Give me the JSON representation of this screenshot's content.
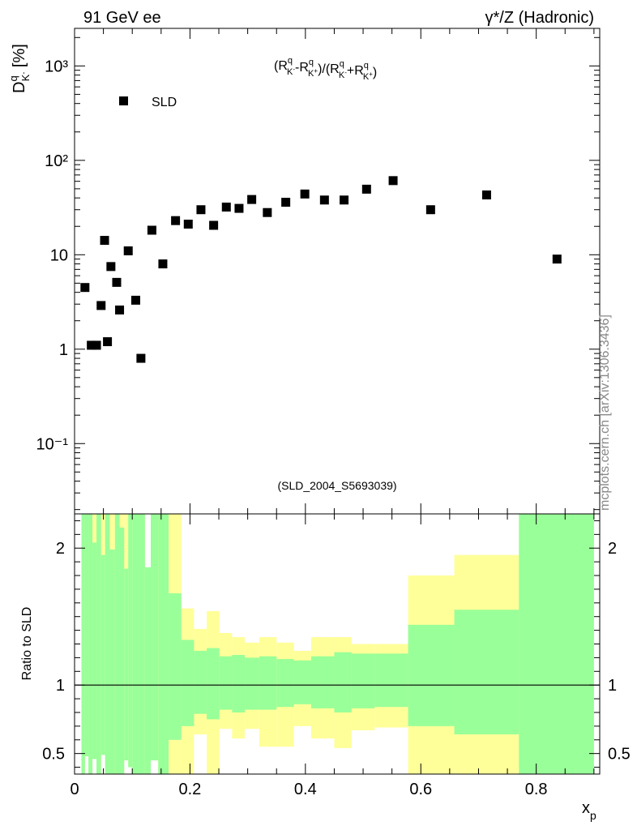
{
  "header": {
    "left": "91 GeV ee",
    "right": "γ*/Z (Hadronic)"
  },
  "watermark": "mcplots.cern.ch [arXiv:1306.3436]",
  "analysis_id": "(SLD_2004_S5693039)",
  "colors": {
    "inner_band": "#99ff99",
    "outer_band": "#ffff99",
    "marker": "#000000",
    "reference_line": "#000000"
  },
  "chart_data": [
    {
      "type": "scatter",
      "yscale": "log",
      "ylabel": "D_K^q [%]",
      "annotation": "(R_K-^q-R_K+^q)/(R_K-^q+R_K+^q)",
      "xlim": [
        0,
        0.91
      ],
      "ylim": [
        0.018,
        2500
      ],
      "y_ticks": [
        "10⁻¹",
        "1",
        "10",
        "10²",
        "10³"
      ],
      "legend": {
        "position": "top-left",
        "entries": [
          "SLD"
        ]
      },
      "series": [
        {
          "name": "SLD",
          "marker": "square",
          "x": [
            0.018,
            0.029,
            0.038,
            0.046,
            0.052,
            0.057,
            0.063,
            0.073,
            0.078,
            0.093,
            0.106,
            0.115,
            0.134,
            0.153,
            0.175,
            0.197,
            0.219,
            0.241,
            0.263,
            0.285,
            0.307,
            0.334,
            0.366,
            0.399,
            0.433,
            0.467,
            0.506,
            0.552,
            0.617,
            0.714,
            0.836
          ],
          "y": [
            4.5,
            1.1,
            1.1,
            2.9,
            14.2,
            1.2,
            7.5,
            5.1,
            2.6,
            11.0,
            3.3,
            0.8,
            18.2,
            8.0,
            23.0,
            21.1,
            30.0,
            20.5,
            32.0,
            31.0,
            38.5,
            28.0,
            36.0,
            44.0,
            38.0,
            38.0,
            49.5,
            61.0,
            30.0,
            43.0,
            9.0
          ]
        }
      ]
    },
    {
      "type": "area",
      "ylabel": "Ratio to SLD",
      "xlabel": "x_p",
      "xlim": [
        0,
        0.91
      ],
      "ylim": [
        0.35,
        2.25
      ],
      "x_ticks": [
        "0",
        "0.2",
        "0.4",
        "0.6",
        "0.8"
      ],
      "y_ticks": [
        "0.5",
        "1",
        "2"
      ],
      "reference_value": 1,
      "series": [
        {
          "name": "",
          "bins": [
            {
              "lo": 0.012,
              "hi": 0.018,
              "inner": [
                0.35,
                2.25
              ],
              "outer": [
                0.35,
                2.25
              ]
            },
            {
              "lo": 0.018,
              "hi": 0.024,
              "inner": [
                0.48,
                2.25
              ],
              "outer": [
                0.48,
                2.25
              ]
            },
            {
              "lo": 0.024,
              "hi": 0.031,
              "inner": [
                0.35,
                2.25
              ],
              "outer": [
                0.35,
                2.25
              ]
            },
            {
              "lo": 0.031,
              "hi": 0.038,
              "inner": [
                0.46,
                2.04
              ],
              "outer": [
                0.46,
                2.25
              ]
            },
            {
              "lo": 0.038,
              "hi": 0.046,
              "inner": [
                0.35,
                2.25
              ],
              "outer": [
                0.35,
                2.25
              ]
            },
            {
              "lo": 0.046,
              "hi": 0.053,
              "inner": [
                0.49,
                1.95
              ],
              "outer": [
                0.49,
                2.25
              ]
            },
            {
              "lo": 0.053,
              "hi": 0.061,
              "inner": [
                0.35,
                2.25
              ],
              "outer": [
                0.35,
                2.25
              ]
            },
            {
              "lo": 0.061,
              "hi": 0.07,
              "inner": [
                0.35,
                1.99
              ],
              "outer": [
                0.35,
                2.25
              ]
            },
            {
              "lo": 0.07,
              "hi": 0.078,
              "inner": [
                0.35,
                2.25
              ],
              "outer": [
                0.35,
                2.25
              ]
            },
            {
              "lo": 0.078,
              "hi": 0.086,
              "inner": [
                0.35,
                2.15
              ],
              "outer": [
                0.35,
                2.25
              ]
            },
            {
              "lo": 0.086,
              "hi": 0.093,
              "inner": [
                0.45,
                1.85
              ],
              "outer": [
                0.45,
                2.25
              ]
            },
            {
              "lo": 0.093,
              "hi": 0.1,
              "inner": [
                0.4,
                2.25
              ],
              "outer": [
                0.4,
                2.25
              ]
            },
            {
              "lo": 0.1,
              "hi": 0.122,
              "inner": [
                0.35,
                2.25
              ],
              "outer": [
                0.35,
                2.25
              ]
            },
            {
              "lo": 0.122,
              "hi": 0.132,
              "inner": [
                0.35,
                1.86
              ],
              "outer": [
                0.35,
                1.86
              ]
            },
            {
              "lo": 0.132,
              "hi": 0.145,
              "inner": [
                0.45,
                2.25
              ],
              "outer": [
                0.45,
                2.25
              ]
            },
            {
              "lo": 0.145,
              "hi": 0.163,
              "inner": [
                0.35,
                2.25
              ],
              "outer": [
                0.35,
                2.25
              ]
            },
            {
              "lo": 0.163,
              "hi": 0.185,
              "inner": [
                0.6,
                1.67
              ],
              "outer": [
                0.35,
                2.25
              ]
            },
            {
              "lo": 0.185,
              "hi": 0.207,
              "inner": [
                0.7,
                1.33
              ],
              "outer": [
                0.35,
                1.56
              ]
            },
            {
              "lo": 0.207,
              "hi": 0.229,
              "inner": [
                0.79,
                1.25
              ],
              "outer": [
                0.64,
                1.41
              ]
            },
            {
              "lo": 0.229,
              "hi": 0.251,
              "inner": [
                0.75,
                1.27
              ],
              "outer": [
                0.35,
                1.54
              ]
            },
            {
              "lo": 0.251,
              "hi": 0.273,
              "inner": [
                0.82,
                1.21
              ],
              "outer": [
                0.68,
                1.38
              ]
            },
            {
              "lo": 0.273,
              "hi": 0.295,
              "inner": [
                0.8,
                1.22
              ],
              "outer": [
                0.61,
                1.35
              ]
            },
            {
              "lo": 0.295,
              "hi": 0.32,
              "inner": [
                0.82,
                1.2
              ],
              "outer": [
                0.68,
                1.31
              ]
            },
            {
              "lo": 0.32,
              "hi": 0.35,
              "inner": [
                0.82,
                1.21
              ],
              "outer": [
                0.55,
                1.35
              ]
            },
            {
              "lo": 0.35,
              "hi": 0.38,
              "inner": [
                0.84,
                1.19
              ],
              "outer": [
                0.55,
                1.31
              ]
            },
            {
              "lo": 0.38,
              "hi": 0.41,
              "inner": [
                0.86,
                1.18
              ],
              "outer": [
                0.7,
                1.25
              ]
            },
            {
              "lo": 0.41,
              "hi": 0.45,
              "inner": [
                0.83,
                1.21
              ],
              "outer": [
                0.61,
                1.35
              ]
            },
            {
              "lo": 0.45,
              "hi": 0.48,
              "inner": [
                0.8,
                1.24
              ],
              "outer": [
                0.54,
                1.35
              ]
            },
            {
              "lo": 0.48,
              "hi": 0.52,
              "inner": [
                0.83,
                1.23
              ],
              "outer": [
                0.67,
                1.3
              ]
            },
            {
              "lo": 0.52,
              "hi": 0.578,
              "inner": [
                0.84,
                1.23
              ],
              "outer": [
                0.69,
                1.3
              ]
            },
            {
              "lo": 0.578,
              "hi": 0.658,
              "inner": [
                0.7,
                1.44
              ],
              "outer": [
                0.35,
                1.8
              ]
            },
            {
              "lo": 0.658,
              "hi": 0.77,
              "inner": [
                0.64,
                1.55
              ],
              "outer": [
                0.35,
                1.95
              ]
            },
            {
              "lo": 0.77,
              "hi": 0.9,
              "inner": [
                0.35,
                2.25
              ],
              "outer": [
                0.35,
                2.25
              ]
            }
          ]
        }
      ]
    }
  ]
}
